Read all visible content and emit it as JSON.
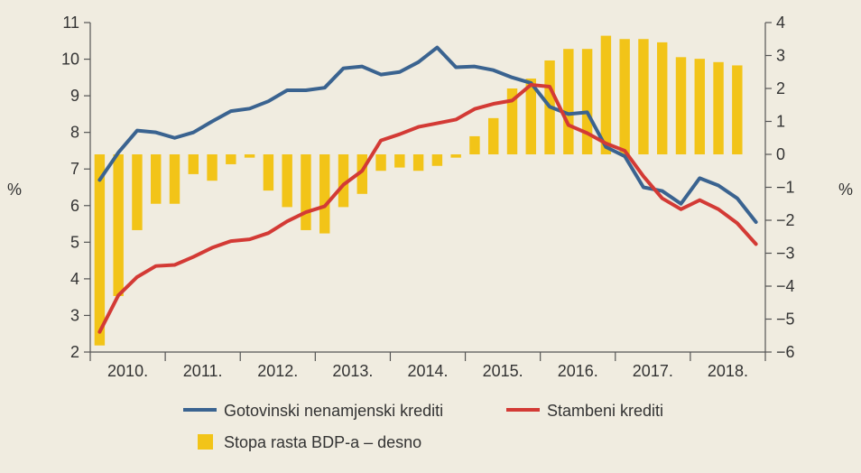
{
  "chart_data": {
    "type": "bar+line",
    "left_axis": {
      "label": "%",
      "ylim": [
        2,
        11
      ],
      "ticks": [
        "2",
        "3",
        "4",
        "5",
        "6",
        "7",
        "8",
        "9",
        "10",
        "11"
      ]
    },
    "right_axis": {
      "label": "%",
      "ylim": [
        -6,
        4
      ],
      "ticks": [
        "−6",
        "−5",
        "−4",
        "−3",
        "−2",
        "−1",
        "0",
        "1",
        "2",
        "3",
        "4"
      ]
    },
    "x_axis": {
      "categories": [
        "2010.",
        "2011.",
        "2012.",
        "2013.",
        "2014.",
        "2015.",
        "2016.",
        "2017.",
        "2018."
      ],
      "quarters_per_year": 4
    },
    "grid": false,
    "legend_position": "bottom",
    "series": [
      {
        "name": "Gotovinski nenamjenski krediti",
        "type": "line",
        "axis": "left",
        "color": "#3a6390",
        "values": [
          6.7,
          7.45,
          8.05,
          8.0,
          7.85,
          8.0,
          8.3,
          8.58,
          8.65,
          8.85,
          9.15,
          9.15,
          9.22,
          9.75,
          9.8,
          9.58,
          9.65,
          9.92,
          10.32,
          9.78,
          9.8,
          9.7,
          9.5,
          9.35,
          8.7,
          8.5,
          8.55,
          7.6,
          7.35,
          6.5,
          6.4,
          6.05,
          6.75,
          6.55,
          6.2,
          5.55
        ]
      },
      {
        "name": "Stambeni krediti",
        "type": "line",
        "axis": "left",
        "color": "#d33a35",
        "values": [
          2.55,
          3.55,
          4.05,
          4.35,
          4.38,
          4.6,
          4.85,
          5.03,
          5.08,
          5.25,
          5.57,
          5.82,
          5.98,
          6.57,
          6.95,
          7.78,
          7.95,
          8.15,
          8.25,
          8.35,
          8.64,
          8.78,
          8.87,
          9.3,
          9.25,
          8.2,
          7.98,
          7.7,
          7.5,
          6.8,
          6.2,
          5.9,
          6.15,
          5.9,
          5.52,
          4.95
        ]
      },
      {
        "name": "Stopa rasta BDP-a – desno",
        "type": "bar",
        "axis": "right",
        "color": "#f2c418",
        "values": [
          -5.8,
          -4.3,
          -2.3,
          -1.5,
          -1.5,
          -0.6,
          -0.8,
          -0.3,
          -0.1,
          -1.1,
          -1.6,
          -2.3,
          -2.4,
          -1.6,
          -1.2,
          -0.5,
          -0.4,
          -0.5,
          -0.35,
          -0.1,
          0.55,
          1.1,
          2.0,
          2.3,
          2.85,
          3.2,
          3.2,
          3.6,
          3.5,
          3.5,
          3.4,
          2.95,
          2.9,
          2.8,
          2.7
        ]
      }
    ]
  }
}
